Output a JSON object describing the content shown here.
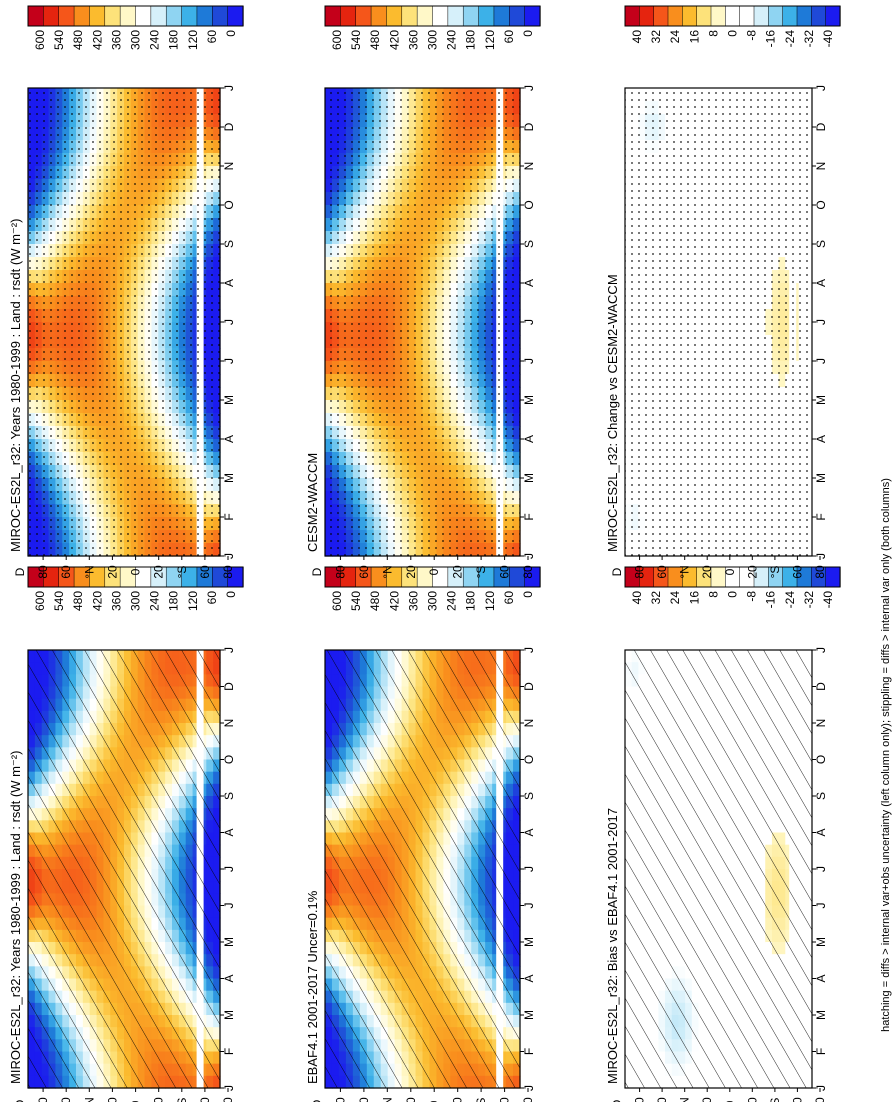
{
  "footnote": "hatching = diffs > internal var+obs uncertainty (left column only); stippling = diffs > internal var only (both columns)",
  "month_ticks": [
    "J",
    "F",
    "M",
    "A",
    "M",
    "J",
    "J",
    "A",
    "S",
    "O",
    "N",
    "D",
    "J"
  ],
  "lat_ticks": [
    "D",
    "80",
    "60",
    "°N",
    "20",
    "0",
    "20",
    "°S",
    "60",
    "80"
  ],
  "colorbars": {
    "absolute": {
      "labels": [
        "600",
        "540",
        "480",
        "420",
        "360",
        "300",
        "240",
        "180",
        "120",
        "60",
        "0"
      ],
      "colors": [
        "#c4001a",
        "#e5240f",
        "#f5561a",
        "#f98e1d",
        "#fbbb2e",
        "#fde27a",
        "#fff8c8",
        "#ffffff",
        "#d6f0fa",
        "#8fd4f2",
        "#3cb1e8",
        "#1e7ad8",
        "#1f49d8",
        "#1b1bf0"
      ]
    },
    "difference": {
      "labels": [
        "40",
        "32",
        "24",
        "16",
        "8",
        "0",
        "-8",
        "-16",
        "-24",
        "-32",
        "-40"
      ],
      "colors": [
        "#c4001a",
        "#e5240f",
        "#f5561a",
        "#f98e1d",
        "#fbbb2e",
        "#fde27a",
        "#fff8c8",
        "#ffffff",
        "#ffffff",
        "#d6f0fa",
        "#8fd4f2",
        "#3cb1e8",
        "#1e7ad8",
        "#1f49d8",
        "#1b1bf0"
      ]
    }
  },
  "chart_data": [
    {
      "type": "heatmap",
      "title": "MIROC-ES2L_r32: Years 1980-1999 : Land : rsdt (W m⁻²)",
      "x_axis": "month (J..J)",
      "y_axis": "latitude (80N..80S)",
      "colorbar": "absolute",
      "overlay": "hatching",
      "zlim": [
        0,
        600
      ],
      "values_summary": {
        "north_pole_june": 540,
        "north_pole_december": 0,
        "equator_march": 420,
        "south_pole_december": 560,
        "south_pole_june": 0
      }
    },
    {
      "type": "heatmap",
      "title": "MIROC-ES2L_r32: Years 1980-1999 : Land : rsdt (W m⁻²)",
      "x_axis": "month (J..J)",
      "y_axis": "latitude (80N..80S)",
      "colorbar": "absolute",
      "overlay": "stippling",
      "zlim": [
        0,
        600
      ]
    },
    {
      "type": "heatmap",
      "title": "EBAF4.1 2001-2017 Uncer=0.1%",
      "x_axis": "month (J..J)",
      "y_axis": "latitude (80N..80S)",
      "colorbar": "absolute",
      "overlay": "hatching",
      "zlim": [
        0,
        600
      ]
    },
    {
      "type": "heatmap",
      "title": "CESM2-WACCM",
      "x_axis": "month (J..J)",
      "y_axis": "latitude (80N..80S)",
      "colorbar": "absolute",
      "overlay": "stippling",
      "zlim": [
        0,
        600
      ]
    },
    {
      "type": "heatmap",
      "title": "MIROC-ES2L_r32: Bias vs EBAF4.1 2001-2017",
      "x_axis": "month (J..J)",
      "y_axis": "latitude (80N..80S)",
      "colorbar": "difference",
      "overlay": "hatching",
      "zlim": [
        -40,
        40
      ],
      "values_summary": {
        "northern_midlat_feb": -12,
        "southern_midlat_july": 10
      }
    },
    {
      "type": "heatmap",
      "title": "MIROC-ES2L_r32: Change vs CESM2-WACCM",
      "x_axis": "month (J..J)",
      "y_axis": "latitude (80N..80S)",
      "colorbar": "difference",
      "overlay": "stippling",
      "zlim": [
        -40,
        40
      ],
      "values_summary": {
        "northern_midlat_dec": -10,
        "southern_midlat_july": 8
      }
    }
  ]
}
